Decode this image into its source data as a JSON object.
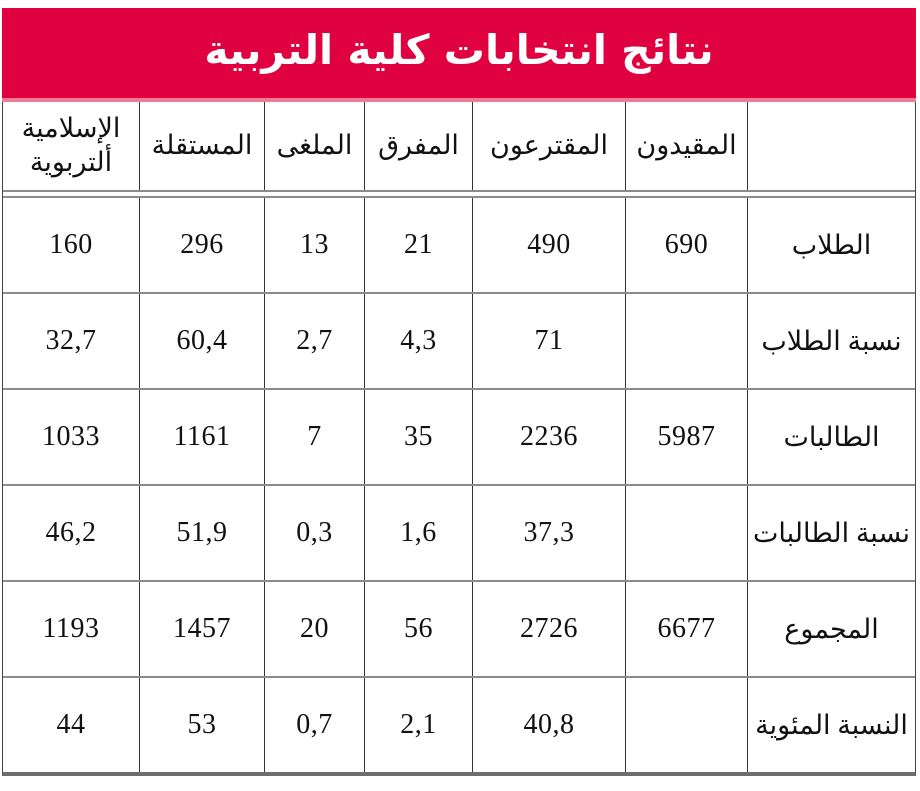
{
  "chart_data": {
    "type": "table",
    "title": "نتائج انتخابات كلية التربية",
    "direction": "rtl",
    "columns": [
      "",
      "المقيدون",
      "المقترعون",
      "المفرق",
      "الملغى",
      "المستقلة",
      "الإسلامية\nألتربوية"
    ],
    "rows": [
      {
        "label": "الطلاب",
        "values": [
          "690",
          "490",
          "21",
          "13",
          "296",
          "160"
        ]
      },
      {
        "label": "نسبة الطلاب",
        "values": [
          "",
          "71",
          "4,3",
          "2,7",
          "60,4",
          "32,7"
        ]
      },
      {
        "label": "الطالبات",
        "values": [
          "5987",
          "2236",
          "35",
          "7",
          "1161",
          "1033"
        ]
      },
      {
        "label": "نسبة الطالبات",
        "values": [
          "",
          "37,3",
          "1,6",
          "0,3",
          "51,9",
          "46,2"
        ]
      },
      {
        "label": "المجموع",
        "values": [
          "6677",
          "2726",
          "56",
          "20",
          "1457",
          "1193"
        ]
      },
      {
        "label": "النسبة المئوية",
        "values": [
          "",
          "40,8",
          "2,1",
          "0,7",
          "53",
          "44"
        ]
      }
    ],
    "legend": "none",
    "grid": "on"
  },
  "colors": {
    "banner_red": "#E00140",
    "banner_bottom_edge": "#EE7D92",
    "grid_vertical": "#333333",
    "grid_horizontal": "#8B8B8B",
    "table_bottom_border": "#6E6E6E",
    "text": "#111111",
    "title_text": "#FFFFFF"
  }
}
